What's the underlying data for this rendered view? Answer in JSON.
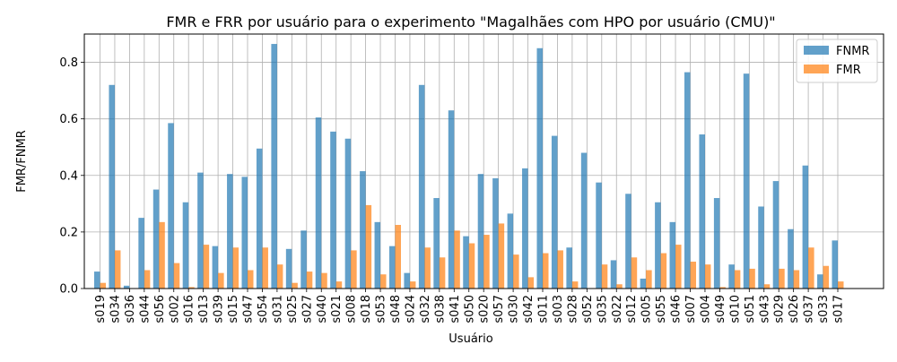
{
  "chart_data": {
    "type": "bar",
    "title": "FMR e FRR por usuário para o experimento \"Magalhães com HPO por usuário (CMU)\"",
    "xlabel": "Usuário",
    "ylabel": "FMR/FNMR",
    "ylim": [
      0,
      0.9
    ],
    "yticks": [
      "0.0",
      "0.2",
      "0.4",
      "0.6",
      "0.8"
    ],
    "grid": true,
    "legend_position": "top-right",
    "categories": [
      "s019",
      "s034",
      "s036",
      "s044",
      "s056",
      "s002",
      "s016",
      "s013",
      "s039",
      "s015",
      "s047",
      "s054",
      "s031",
      "s025",
      "s027",
      "s040",
      "s021",
      "s008",
      "s018",
      "s053",
      "s048",
      "s024",
      "s032",
      "s038",
      "s041",
      "s050",
      "s020",
      "s057",
      "s030",
      "s042",
      "s011",
      "s003",
      "s028",
      "s052",
      "s035",
      "s022",
      "s012",
      "s005",
      "s055",
      "s046",
      "s007",
      "s004",
      "s049",
      "s010",
      "s051",
      "s043",
      "s029",
      "s026",
      "s037",
      "s033",
      "s017"
    ],
    "series": [
      {
        "name": "FNMR",
        "color": "#1f77b4",
        "values": [
          0.06,
          0.72,
          0.01,
          0.25,
          0.35,
          0.585,
          0.305,
          0.41,
          0.15,
          0.405,
          0.395,
          0.495,
          0.865,
          0.14,
          0.205,
          0.605,
          0.555,
          0.53,
          0.415,
          0.235,
          0.15,
          0.055,
          0.72,
          0.32,
          0.63,
          0.185,
          0.405,
          0.39,
          0.265,
          0.425,
          0.85,
          0.54,
          0.145,
          0.48,
          0.375,
          0.1,
          0.335,
          0.035,
          0.305,
          0.235,
          0.765,
          0.545,
          0.32,
          0.085,
          0.76,
          0.29,
          0.38,
          0.21,
          0.435,
          0.05,
          0.17
        ]
      },
      {
        "name": "FMR",
        "color": "#ff7f0e",
        "values": [
          0.02,
          0.135,
          0.0,
          0.065,
          0.235,
          0.09,
          0.005,
          0.155,
          0.055,
          0.145,
          0.065,
          0.145,
          0.085,
          0.02,
          0.06,
          0.055,
          0.025,
          0.135,
          0.295,
          0.05,
          0.225,
          0.025,
          0.145,
          0.11,
          0.205,
          0.16,
          0.19,
          0.23,
          0.12,
          0.04,
          0.125,
          0.135,
          0.025,
          0.0,
          0.085,
          0.015,
          0.11,
          0.065,
          0.125,
          0.155,
          0.095,
          0.085,
          0.005,
          0.065,
          0.07,
          0.015,
          0.07,
          0.065,
          0.145,
          0.08,
          0.025
        ]
      }
    ]
  }
}
